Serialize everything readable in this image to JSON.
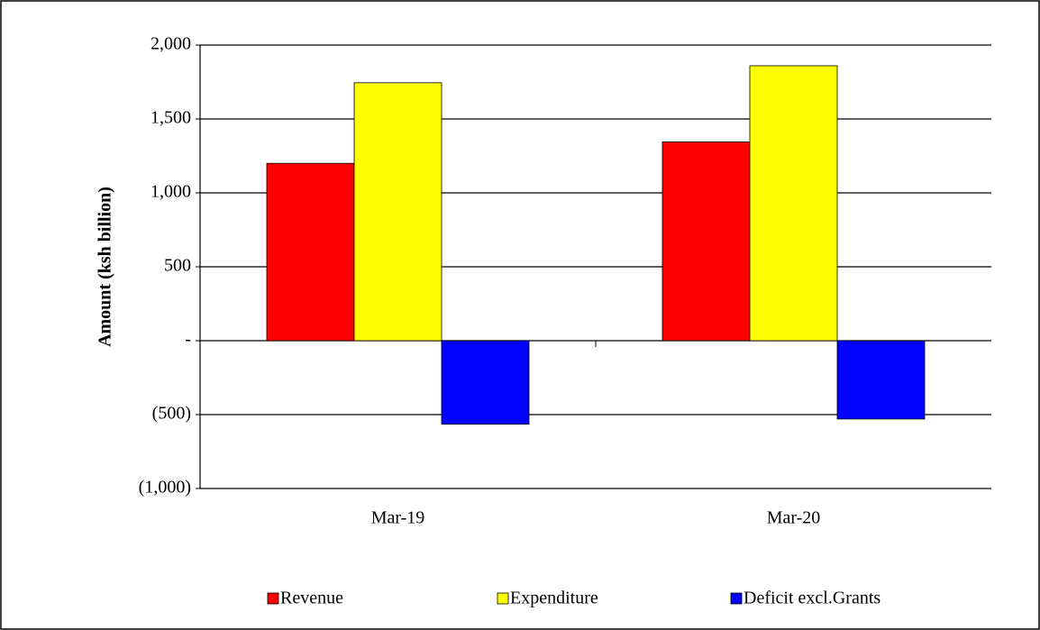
{
  "chart_data": {
    "type": "bar",
    "y_label": "Amount  (ksh billion)",
    "categories": [
      "Mar-19",
      "Mar-20"
    ],
    "series": [
      {
        "name": "Revenue",
        "color": "#ff0000",
        "values": [
          1200,
          1345
        ]
      },
      {
        "name": "Expenditure",
        "color": "#ffff00",
        "values": [
          1745,
          1860
        ]
      },
      {
        "name": "Deficit excl.Grants",
        "color": "#0000ff",
        "values": [
          -565,
          -530
        ]
      }
    ],
    "ylim": [
      -1000,
      2000
    ],
    "yticks": [
      {
        "value": -1000,
        "label": "(1,000)"
      },
      {
        "value": -500,
        "label": "(500)"
      },
      {
        "value": 0,
        "label": "-"
      },
      500,
      {
        "value": 1000,
        "label": "1,000"
      },
      {
        "value": 1500,
        "label": "1,500"
      },
      {
        "value": 2000,
        "label": "2,000"
      }
    ],
    "grid": true,
    "legend": "bottom"
  }
}
